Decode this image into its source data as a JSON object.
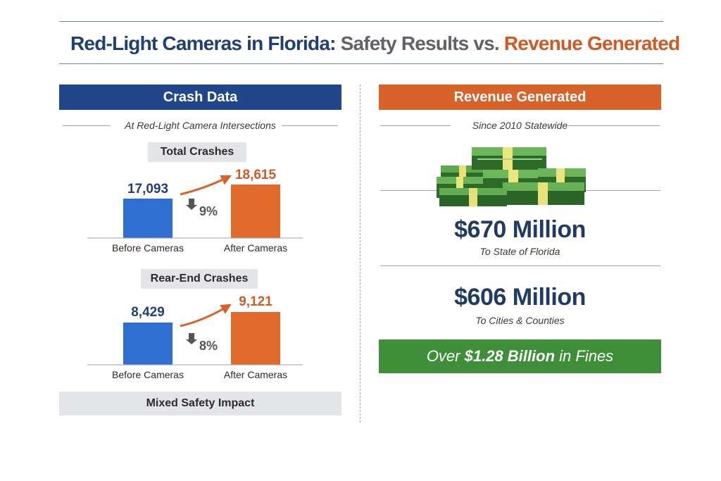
{
  "title": {
    "part1": "Red-Light Cameras in Florida:",
    "part2": "Safety Results vs.",
    "part3": "Revenue Generated",
    "colors": {
      "blue": "#1f3f78",
      "gray": "#5f6368",
      "orange": "#cf5a25"
    }
  },
  "left": {
    "header": "Crash Data",
    "subtitle": "At Red-Light Camera Intersections",
    "footer": "Mixed Safety Impact"
  },
  "right": {
    "header": "Revenue Generated",
    "subtitle": "Since 2010 Statewide",
    "money_icon": "cash-stacks-icon",
    "state_amount": "$670 Million",
    "state_label": "To State of Florida",
    "local_amount": "$606 Million",
    "local_label": "To Cities & Counties",
    "total_prefix": "Over",
    "total_amount": "$1.28 Billion",
    "total_suffix": "in Fines"
  },
  "chart_data": [
    {
      "type": "bar",
      "title": "Total Crashes",
      "categories": [
        "Before Cameras",
        "After Cameras"
      ],
      "values": [
        17093,
        18615
      ],
      "value_labels": [
        "17,093",
        "18,615"
      ],
      "change_label": "9%",
      "change_icon": "arrow-up-icon",
      "colors": [
        "#2e6fd0",
        "#e0692c"
      ]
    },
    {
      "type": "bar",
      "title": "Rear-End Crashes",
      "categories": [
        "Before Cameras",
        "After Cameras"
      ],
      "values": [
        8429,
        9121
      ],
      "value_labels": [
        "8,429",
        "9,121"
      ],
      "change_label": "8%",
      "change_icon": "arrow-up-icon",
      "colors": [
        "#2e6fd0",
        "#e0692c"
      ]
    }
  ]
}
